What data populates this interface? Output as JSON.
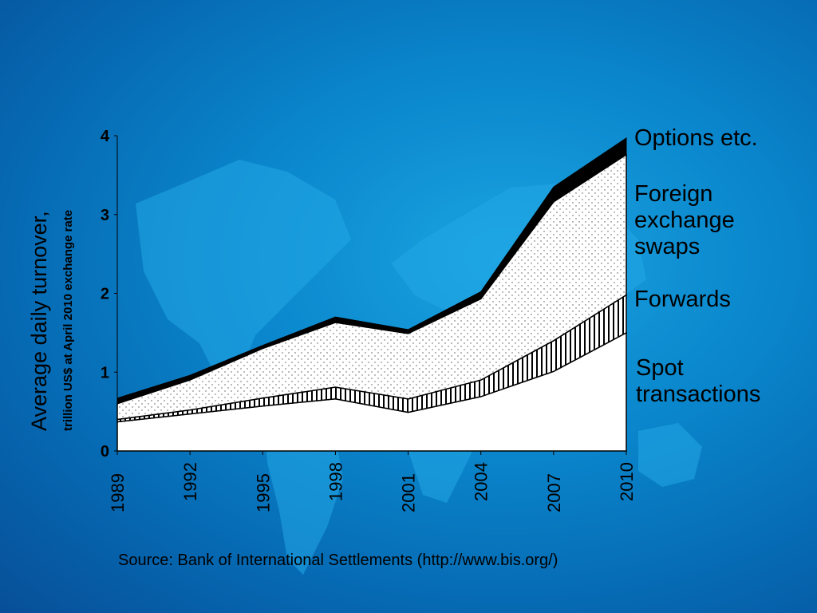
{
  "colors": {
    "background": "#0a86cc",
    "map": "#23a8e6"
  },
  "chart_data": {
    "type": "area",
    "stacked": true,
    "x": [
      "1989",
      "1992",
      "1995",
      "1998",
      "2001",
      "2004",
      "2007",
      "2010"
    ],
    "ylabel": "Average daily turnover,",
    "ylabel_sub": "trillion US$ at April 2010 exchange rate",
    "yticks": [
      "0",
      "1",
      "2",
      "3",
      "4"
    ],
    "ylim": [
      0,
      4
    ],
    "grid": false,
    "legend_placement": "right",
    "series": [
      {
        "name": "Spot transactions",
        "name_lines": [
          "Spot",
          "transactions"
        ],
        "values": [
          0.37,
          0.47,
          0.57,
          0.66,
          0.49,
          0.69,
          1.01,
          1.5
        ]
      },
      {
        "name": "Forwards",
        "name_lines": [
          "Forwards"
        ],
        "values": [
          0.03,
          0.05,
          0.1,
          0.15,
          0.17,
          0.21,
          0.39,
          0.48
        ]
      },
      {
        "name": "Foreign exchange swaps",
        "name_lines": [
          "Foreign",
          "exchange",
          "swaps"
        ],
        "values": [
          0.2,
          0.38,
          0.63,
          0.82,
          0.83,
          1.03,
          1.76,
          1.78
        ]
      },
      {
        "name": "Options etc.",
        "name_lines": [
          "Options etc."
        ],
        "values": [
          0.07,
          0.06,
          0.04,
          0.07,
          0.05,
          0.09,
          0.19,
          0.21
        ]
      }
    ]
  },
  "source": "Source: Bank of International Settlements (http://www.bis.org/)"
}
